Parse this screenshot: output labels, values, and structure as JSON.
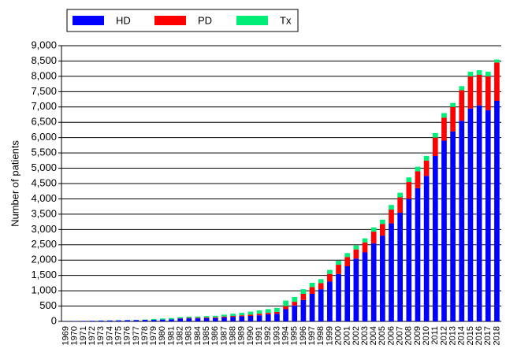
{
  "chart_data": {
    "type": "stacked_bar",
    "ylabel": "Number of patients",
    "categories": [
      "1969",
      "1970",
      "1971",
      "1972",
      "1973",
      "1974",
      "1975",
      "1976",
      "1977",
      "1978",
      "1979",
      "1980",
      "1981",
      "1982",
      "1983",
      "1984",
      "1985",
      "1986",
      "1987",
      "1988",
      "1989",
      "1990",
      "1991",
      "1992",
      "1993",
      "1994",
      "1995",
      "1996",
      "1997",
      "1998",
      "1999",
      "2000",
      "2001",
      "2002",
      "2003",
      "2004",
      "2005",
      "2006",
      "2007",
      "2008",
      "2009",
      "2010",
      "2011",
      "2012",
      "2013",
      "2014",
      "2015",
      "2016",
      "2017",
      "2018"
    ],
    "series": [
      {
        "name": "HD",
        "color": "#0000ff",
        "values": [
          5,
          10,
          15,
          20,
          25,
          30,
          35,
          40,
          45,
          50,
          50,
          60,
          70,
          90,
          100,
          100,
          110,
          110,
          130,
          150,
          170,
          180,
          200,
          230,
          250,
          400,
          520,
          700,
          900,
          1050,
          1300,
          1550,
          1800,
          2050,
          2250,
          2550,
          2800,
          3200,
          3550,
          4000,
          4350,
          4750,
          5400,
          5900,
          6200,
          6550,
          6950,
          7050,
          6900,
          7200
        ]
      },
      {
        "name": "PD",
        "color": "#ff0000",
        "values": [
          0,
          0,
          0,
          0,
          0,
          0,
          0,
          0,
          0,
          0,
          0,
          0,
          0,
          10,
          15,
          20,
          20,
          25,
          30,
          30,
          30,
          40,
          50,
          50,
          60,
          100,
          120,
          200,
          220,
          200,
          250,
          300,
          300,
          300,
          330,
          380,
          380,
          450,
          500,
          550,
          550,
          500,
          600,
          750,
          800,
          1000,
          1050,
          1000,
          1100,
          1250
        ]
      },
      {
        "name": "Tx",
        "color": "#00ee77",
        "values": [
          0,
          0,
          0,
          0,
          5,
          5,
          5,
          5,
          5,
          10,
          30,
          35,
          40,
          40,
          40,
          40,
          45,
          50,
          60,
          70,
          80,
          100,
          110,
          120,
          130,
          180,
          160,
          150,
          140,
          130,
          130,
          130,
          130,
          130,
          130,
          140,
          140,
          150,
          150,
          150,
          150,
          150,
          150,
          150,
          130,
          130,
          150,
          150,
          150,
          100
        ]
      }
    ],
    "ylim": [
      0,
      9000
    ],
    "yticks": [
      0,
      500,
      {
        "value": 1000,
        "label": "1,000"
      },
      {
        "value": 1500,
        "label": "1,500"
      },
      {
        "value": 2000,
        "label": "2,000"
      },
      {
        "value": 2500,
        "label": "2,500"
      },
      {
        "value": 3000,
        "label": "3,000"
      },
      {
        "value": 3500,
        "label": "3,500"
      },
      {
        "value": 4000,
        "label": "4,000"
      },
      {
        "value": 4500,
        "label": "4,500"
      },
      {
        "value": 5000,
        "label": "5,000"
      },
      {
        "value": 5500,
        "label": "5,500"
      },
      {
        "value": 6000,
        "label": "6,000"
      },
      {
        "value": 6500,
        "label": "6,500"
      },
      {
        "value": 7000,
        "label": "7,000"
      },
      {
        "value": 7500,
        "label": "7,500"
      },
      {
        "value": 8000,
        "label": "8,000"
      },
      {
        "value": 8500,
        "label": "8,500"
      },
      {
        "value": 9000,
        "label": "9,000"
      }
    ],
    "grid": true
  }
}
